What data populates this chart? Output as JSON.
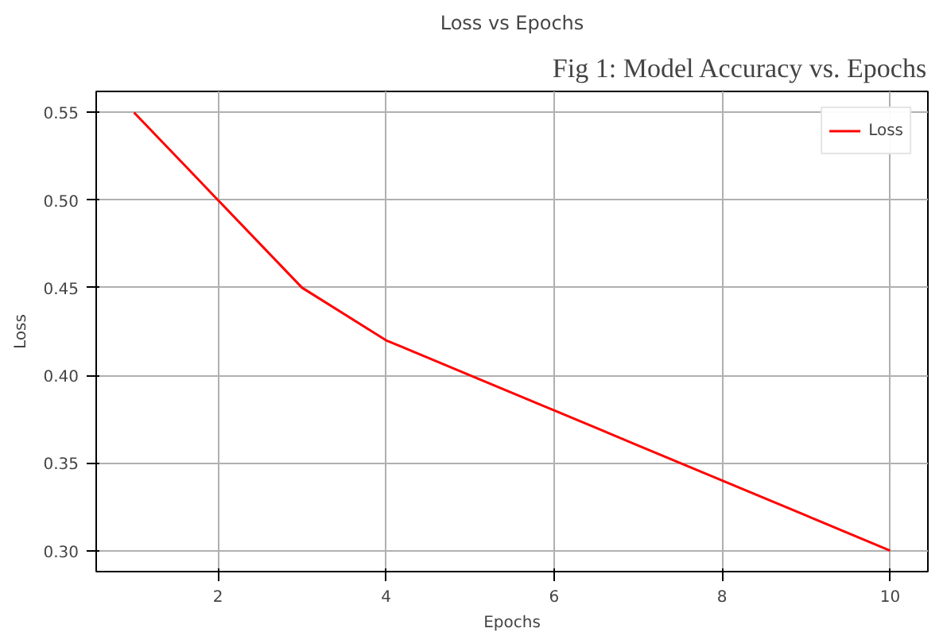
{
  "chart_data": {
    "type": "line",
    "title": "Loss vs Epochs",
    "xlabel": "Epochs",
    "ylabel": "Loss",
    "annotations": [
      "Fig 1: Model Accuracy vs. Epochs"
    ],
    "x": [
      1,
      2,
      3,
      4,
      5,
      6,
      7,
      8,
      9,
      10
    ],
    "series": [
      {
        "name": "Loss",
        "color": "#ff0000",
        "values": [
          0.55,
          0.5,
          0.45,
          0.42,
          0.4,
          0.38,
          0.36,
          0.34,
          0.32,
          0.3
        ]
      }
    ],
    "xlim": [
      0.55,
      10.45
    ],
    "ylim": [
      0.288,
      0.562
    ],
    "xticks": [
      2,
      4,
      6,
      8,
      10
    ],
    "yticks": [
      {
        "value": 0.3,
        "label": "0.30"
      },
      {
        "value": 0.35,
        "label": "0.35"
      },
      {
        "value": 0.4,
        "label": "0.40"
      },
      {
        "value": 0.45,
        "label": "0.45"
      },
      {
        "value": 0.5,
        "label": "0.50"
      },
      {
        "value": 0.55,
        "label": "0.55"
      }
    ],
    "grid": true,
    "legend": "top right",
    "line_style": "solid"
  }
}
